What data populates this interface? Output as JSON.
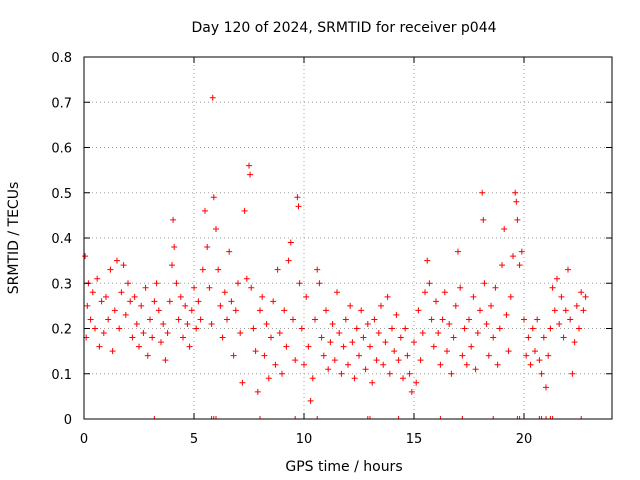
{
  "chart_data": {
    "type": "scatter",
    "title": "Day 120 of 2024, SRMTID for receiver p044",
    "xlabel": "GPS time / hours",
    "ylabel": "SRMTID / TECUs",
    "xlim": [
      0,
      24
    ],
    "ylim": [
      0,
      0.8
    ],
    "x_ticks": [
      0,
      5,
      10,
      15,
      20
    ],
    "x_tick_labels": [
      "0",
      "5",
      "10",
      "15",
      "20"
    ],
    "y_ticks": [
      0,
      0.1,
      0.2,
      0.3,
      0.4,
      0.5,
      0.6,
      0.7,
      0.8
    ],
    "y_tick_labels": [
      "0",
      "0.1",
      "0.2",
      "0.3",
      "0.4",
      "0.5",
      "0.6",
      "0.7",
      "0.8"
    ],
    "grid": true,
    "marker": "plus",
    "color": "#ff0000",
    "series": [
      {
        "name": "SRMTID",
        "points": [
          [
            0.05,
            0.36
          ],
          [
            0.1,
            0.18
          ],
          [
            0.15,
            0.25
          ],
          [
            0.2,
            0.3
          ],
          [
            0.3,
            0.22
          ],
          [
            0.4,
            0.28
          ],
          [
            0.5,
            0.2
          ],
          [
            0.6,
            0.31
          ],
          [
            0.7,
            0.16
          ],
          [
            0.8,
            0.26
          ],
          [
            0.9,
            0.19
          ],
          [
            1.0,
            0.27
          ],
          [
            1.1,
            0.22
          ],
          [
            1.2,
            0.33
          ],
          [
            1.3,
            0.15
          ],
          [
            1.4,
            0.24
          ],
          [
            1.5,
            0.35
          ],
          [
            1.6,
            0.2
          ],
          [
            1.7,
            0.28
          ],
          [
            1.8,
            0.34
          ],
          [
            1.9,
            0.23
          ],
          [
            2.0,
            0.3
          ],
          [
            2.1,
            0.26
          ],
          [
            2.2,
            0.18
          ],
          [
            2.3,
            0.27
          ],
          [
            2.4,
            0.21
          ],
          [
            2.5,
            0.16
          ],
          [
            2.6,
            0.25
          ],
          [
            2.7,
            0.19
          ],
          [
            2.8,
            0.29
          ],
          [
            2.9,
            0.14
          ],
          [
            3.0,
            0.22
          ],
          [
            3.1,
            0.18
          ],
          [
            3.2,
            0.26
          ],
          [
            3.3,
            0.3
          ],
          [
            3.4,
            0.24
          ],
          [
            3.5,
            0.17
          ],
          [
            3.6,
            0.21
          ],
          [
            3.7,
            0.13
          ],
          [
            3.8,
            0.19
          ],
          [
            3.9,
            0.26
          ],
          [
            4.0,
            0.34
          ],
          [
            4.05,
            0.44
          ],
          [
            4.1,
            0.38
          ],
          [
            4.2,
            0.3
          ],
          [
            4.3,
            0.22
          ],
          [
            4.4,
            0.27
          ],
          [
            4.5,
            0.18
          ],
          [
            4.6,
            0.25
          ],
          [
            4.7,
            0.21
          ],
          [
            4.8,
            0.16
          ],
          [
            4.9,
            0.24
          ],
          [
            5.0,
            0.29
          ],
          [
            5.1,
            0.2
          ],
          [
            5.2,
            0.26
          ],
          [
            5.3,
            0.22
          ],
          [
            5.4,
            0.33
          ],
          [
            5.5,
            0.46
          ],
          [
            5.6,
            0.38
          ],
          [
            5.7,
            0.29
          ],
          [
            5.8,
            0.21
          ],
          [
            5.85,
            0.71
          ],
          [
            5.9,
            0.49
          ],
          [
            6.0,
            0.42
          ],
          [
            6.1,
            0.33
          ],
          [
            6.2,
            0.25
          ],
          [
            6.3,
            0.18
          ],
          [
            6.4,
            0.28
          ],
          [
            6.5,
            0.22
          ],
          [
            6.6,
            0.37
          ],
          [
            6.7,
            0.26
          ],
          [
            6.8,
            0.14
          ],
          [
            6.9,
            0.24
          ],
          [
            7.0,
            0.3
          ],
          [
            7.1,
            0.19
          ],
          [
            7.2,
            0.08
          ],
          [
            7.3,
            0.46
          ],
          [
            7.4,
            0.31
          ],
          [
            7.5,
            0.56
          ],
          [
            7.55,
            0.54
          ],
          [
            7.6,
            0.29
          ],
          [
            7.7,
            0.2
          ],
          [
            7.8,
            0.15
          ],
          [
            7.9,
            0.06
          ],
          [
            8.0,
            0.24
          ],
          [
            8.1,
            0.27
          ],
          [
            8.2,
            0.14
          ],
          [
            8.3,
            0.21
          ],
          [
            8.4,
            0.09
          ],
          [
            8.5,
            0.18
          ],
          [
            8.6,
            0.26
          ],
          [
            8.7,
            0.12
          ],
          [
            8.8,
            0.33
          ],
          [
            8.9,
            0.19
          ],
          [
            9.0,
            0.1
          ],
          [
            9.1,
            0.24
          ],
          [
            9.2,
            0.16
          ],
          [
            9.3,
            0.35
          ],
          [
            9.4,
            0.39
          ],
          [
            9.5,
            0.22
          ],
          [
            9.6,
            0.13
          ],
          [
            9.7,
            0.49
          ],
          [
            9.75,
            0.47
          ],
          [
            9.8,
            0.3
          ],
          [
            9.9,
            0.2
          ],
          [
            10.0,
            0.12
          ],
          [
            10.1,
            0.27
          ],
          [
            10.2,
            0.16
          ],
          [
            10.3,
            0.04
          ],
          [
            10.4,
            0.09
          ],
          [
            10.5,
            0.22
          ],
          [
            10.6,
            0.33
          ],
          [
            10.7,
            0.3
          ],
          [
            10.8,
            0.18
          ],
          [
            10.9,
            0.14
          ],
          [
            11.0,
            0.24
          ],
          [
            11.1,
            0.11
          ],
          [
            11.2,
            0.17
          ],
          [
            11.3,
            0.21
          ],
          [
            11.4,
            0.13
          ],
          [
            11.5,
            0.28
          ],
          [
            11.6,
            0.19
          ],
          [
            11.7,
            0.1
          ],
          [
            11.8,
            0.16
          ],
          [
            11.9,
            0.22
          ],
          [
            12.0,
            0.12
          ],
          [
            12.1,
            0.25
          ],
          [
            12.2,
            0.17
          ],
          [
            12.3,
            0.09
          ],
          [
            12.4,
            0.2
          ],
          [
            12.5,
            0.14
          ],
          [
            12.6,
            0.24
          ],
          [
            12.7,
            0.18
          ],
          [
            12.8,
            0.11
          ],
          [
            12.9,
            0.21
          ],
          [
            13.0,
            0.16
          ],
          [
            13.1,
            0.08
          ],
          [
            13.2,
            0.22
          ],
          [
            13.3,
            0.13
          ],
          [
            13.4,
            0.19
          ],
          [
            13.5,
            0.25
          ],
          [
            13.6,
            0.12
          ],
          [
            13.7,
            0.17
          ],
          [
            13.8,
            0.27
          ],
          [
            13.9,
            0.1
          ],
          [
            14.0,
            0.2
          ],
          [
            14.1,
            0.15
          ],
          [
            14.2,
            0.23
          ],
          [
            14.3,
            0.13
          ],
          [
            14.4,
            0.18
          ],
          [
            14.5,
            0.09
          ],
          [
            14.6,
            0.2
          ],
          [
            14.7,
            0.14
          ],
          [
            14.8,
            0.1
          ],
          [
            14.9,
            0.06
          ],
          [
            15.0,
            0.17
          ],
          [
            15.1,
            0.08
          ],
          [
            15.2,
            0.24
          ],
          [
            15.3,
            0.13
          ],
          [
            15.4,
            0.19
          ],
          [
            15.5,
            0.28
          ],
          [
            15.6,
            0.35
          ],
          [
            15.7,
            0.3
          ],
          [
            15.8,
            0.22
          ],
          [
            15.9,
            0.16
          ],
          [
            16.0,
            0.26
          ],
          [
            16.1,
            0.19
          ],
          [
            16.2,
            0.12
          ],
          [
            16.3,
            0.22
          ],
          [
            16.4,
            0.28
          ],
          [
            16.5,
            0.15
          ],
          [
            16.6,
            0.21
          ],
          [
            16.7,
            0.1
          ],
          [
            16.8,
            0.18
          ],
          [
            16.9,
            0.25
          ],
          [
            17.0,
            0.37
          ],
          [
            17.1,
            0.29
          ],
          [
            17.2,
            0.14
          ],
          [
            17.3,
            0.2
          ],
          [
            17.4,
            0.12
          ],
          [
            17.5,
            0.22
          ],
          [
            17.6,
            0.16
          ],
          [
            17.7,
            0.27
          ],
          [
            17.8,
            0.11
          ],
          [
            17.9,
            0.19
          ],
          [
            18.0,
            0.24
          ],
          [
            18.1,
            0.5
          ],
          [
            18.15,
            0.44
          ],
          [
            18.2,
            0.3
          ],
          [
            18.3,
            0.21
          ],
          [
            18.4,
            0.14
          ],
          [
            18.5,
            0.25
          ],
          [
            18.6,
            0.18
          ],
          [
            18.7,
            0.29
          ],
          [
            18.8,
            0.12
          ],
          [
            18.9,
            0.2
          ],
          [
            19.0,
            0.34
          ],
          [
            19.1,
            0.42
          ],
          [
            19.2,
            0.23
          ],
          [
            19.3,
            0.15
          ],
          [
            19.4,
            0.27
          ],
          [
            19.5,
            0.36
          ],
          [
            19.6,
            0.5
          ],
          [
            19.65,
            0.48
          ],
          [
            19.7,
            0.44
          ],
          [
            19.8,
            0.34
          ],
          [
            19.9,
            0.37
          ],
          [
            20.0,
            0.22
          ],
          [
            20.1,
            0.14
          ],
          [
            20.2,
            0.18
          ],
          [
            20.3,
            0.12
          ],
          [
            20.4,
            0.2
          ],
          [
            20.5,
            0.15
          ],
          [
            20.6,
            0.22
          ],
          [
            20.7,
            0.13
          ],
          [
            20.8,
            0.1
          ],
          [
            20.9,
            0.18
          ],
          [
            21.0,
            0.07
          ],
          [
            21.1,
            0.14
          ],
          [
            21.2,
            0.2
          ],
          [
            21.3,
            0.29
          ],
          [
            21.4,
            0.24
          ],
          [
            21.5,
            0.31
          ],
          [
            21.6,
            0.21
          ],
          [
            21.7,
            0.27
          ],
          [
            21.8,
            0.18
          ],
          [
            21.9,
            0.24
          ],
          [
            22.0,
            0.33
          ],
          [
            22.1,
            0.22
          ],
          [
            22.2,
            0.1
          ],
          [
            22.3,
            0.17
          ],
          [
            22.4,
            0.25
          ],
          [
            22.5,
            0.2
          ],
          [
            22.6,
            0.28
          ],
          [
            22.7,
            0.24
          ],
          [
            22.8,
            0.27
          ]
        ]
      }
    ],
    "zero_points_x": [
      3.2,
      5.8,
      5.9,
      6.0,
      8.0,
      9.6,
      10.6,
      12.9,
      13.0,
      14.3,
      15.0,
      16.2,
      17.2,
      18.6,
      19.7,
      19.8,
      20.7,
      20.8,
      21.0,
      21.2,
      21.3,
      22.6
    ]
  }
}
